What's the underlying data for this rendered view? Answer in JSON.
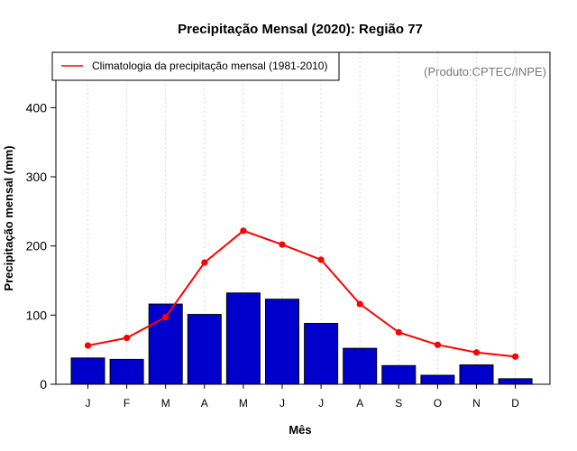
{
  "chart_data": {
    "type": "bar",
    "title": "Precipitação Mensal (2020): Região 77",
    "xlabel": "Mês",
    "ylabel": "Precipitação mensal (mm)",
    "categories": [
      "J",
      "F",
      "M",
      "A",
      "M",
      "J",
      "J",
      "A",
      "S",
      "O",
      "N",
      "D"
    ],
    "ylim": [
      0,
      480
    ],
    "yticks": [
      0,
      100,
      200,
      300,
      400
    ],
    "series": [
      {
        "name": "Precipitação mensal 2020",
        "type": "bar",
        "color": "#0000cd",
        "values": [
          38,
          36,
          116,
          101,
          132,
          123,
          88,
          52,
          27,
          13,
          28,
          8
        ]
      },
      {
        "name": "Climatologia da precipitação mensal (1981-2010)",
        "type": "line",
        "color": "#ff0000",
        "values": [
          56,
          67,
          97,
          176,
          222,
          202,
          180,
          116,
          75,
          57,
          46,
          40
        ]
      }
    ],
    "legend": {
      "position": "top-left",
      "entries": [
        "Climatologia da precipitação mensal (1981-2010)"
      ]
    },
    "grid": "vertical-dotted",
    "source_note": "(Produto:CPTEC/INPE)"
  }
}
